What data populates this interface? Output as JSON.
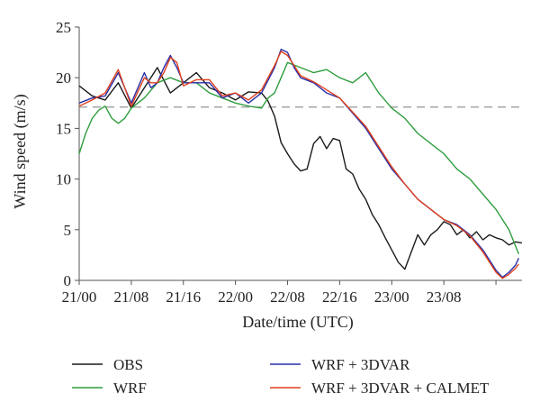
{
  "chart_data": {
    "type": "line",
    "xlabel": "Date/time (UTC)",
    "ylabel": "Wind speed (m/s)",
    "xunit": "hours from 21/00",
    "xlim": [
      0,
      68
    ],
    "ylim": [
      0,
      25
    ],
    "xticks": [
      0,
      8,
      16,
      24,
      32,
      40,
      48,
      56,
      64
    ],
    "xtick_labels": [
      "21/00",
      "21/08",
      "21/16",
      "22/00",
      "22/08",
      "22/16",
      "23/00",
      "23/08",
      ""
    ],
    "yticks": [
      0,
      5,
      10,
      15,
      20,
      25
    ],
    "ytick_labels": [
      "0",
      "5",
      "10",
      "15",
      "20",
      "25"
    ],
    "reference_line": {
      "y": 17.1,
      "style": "dashed"
    },
    "legend_placement": "bottom",
    "series": [
      {
        "name": "OBS",
        "color": "#1a1a1a",
        "x": [
          0,
          2,
          4,
          6,
          8,
          10,
          12,
          14,
          16,
          18,
          20,
          22,
          24,
          26,
          28,
          29,
          30,
          31,
          32,
          33,
          34,
          35,
          36,
          37,
          38,
          39,
          40,
          41,
          42,
          43,
          44,
          45,
          46,
          47,
          48,
          49,
          50,
          51,
          52,
          53,
          54,
          55,
          56,
          57,
          58,
          59,
          60,
          61,
          62,
          63,
          64,
          65,
          66,
          67,
          68
        ],
        "y": [
          19.2,
          18.2,
          17.8,
          19.5,
          17.0,
          19.0,
          21.0,
          18.5,
          19.5,
          20.5,
          19.0,
          18.5,
          17.8,
          18.6,
          18.5,
          17.7,
          16.2,
          13.6,
          12.5,
          11.5,
          10.8,
          11.0,
          13.5,
          14.2,
          13.0,
          14.0,
          13.8,
          11.0,
          10.5,
          9.0,
          8.0,
          6.5,
          5.5,
          4.2,
          3.0,
          1.8,
          1.1,
          2.8,
          4.5,
          3.5,
          4.5,
          5.0,
          5.8,
          5.5,
          4.5,
          5.0,
          4.2,
          4.8,
          4.0,
          4.5,
          4.2,
          4.0,
          3.5,
          3.8,
          3.7
        ]
      },
      {
        "name": "WRF",
        "color": "#2e9e3e",
        "x": [
          0,
          1,
          2,
          3,
          4,
          5,
          6,
          7,
          8,
          10,
          12,
          14,
          16,
          18,
          20,
          22,
          24,
          26,
          28,
          29,
          30,
          31,
          32,
          34,
          36,
          38,
          40,
          42,
          44,
          46,
          48,
          50,
          52,
          54,
          56,
          58,
          60,
          62,
          64,
          66,
          67.5
        ],
        "y": [
          12.5,
          14.5,
          16.0,
          16.8,
          17.2,
          16.0,
          15.5,
          16.0,
          17.0,
          18.0,
          19.5,
          20.0,
          19.5,
          19.5,
          18.5,
          18.0,
          17.5,
          17.2,
          17.0,
          18.0,
          18.5,
          20.0,
          21.5,
          21.0,
          20.5,
          20.8,
          20.0,
          19.5,
          20.5,
          18.5,
          17.0,
          16.0,
          14.5,
          13.5,
          12.5,
          11.0,
          10.0,
          8.5,
          7.0,
          5.0,
          2.6
        ]
      },
      {
        "name": "WRF + 3DVAR",
        "color": "#2a2fa8",
        "x": [
          0,
          2,
          4,
          6,
          8,
          10,
          11,
          12,
          13,
          14,
          15,
          16,
          18,
          20,
          22,
          24,
          26,
          28,
          30,
          31,
          32,
          33,
          34,
          36,
          38,
          40,
          42,
          44,
          46,
          48,
          50,
          52,
          54,
          56,
          58,
          60,
          62,
          64,
          65,
          66,
          67,
          67.5
        ],
        "y": [
          17.5,
          18.0,
          18.2,
          20.5,
          17.5,
          20.5,
          19.0,
          19.5,
          21.0,
          22.2,
          21.0,
          19.5,
          19.5,
          19.5,
          18.0,
          18.5,
          17.5,
          18.5,
          21.0,
          22.8,
          22.5,
          21.0,
          20.0,
          19.5,
          18.5,
          18.0,
          16.5,
          15.0,
          13.0,
          11.0,
          9.5,
          8.0,
          7.0,
          6.0,
          5.5,
          4.5,
          3.0,
          1.0,
          0.3,
          0.8,
          1.5,
          2.2
        ]
      },
      {
        "name": "WRF + 3DVAR + CALMET",
        "color": "#e0401e",
        "x": [
          0,
          2,
          4,
          6,
          8,
          10,
          11,
          12,
          13,
          14,
          15,
          16,
          18,
          20,
          22,
          24,
          26,
          28,
          30,
          31,
          32,
          33,
          34,
          36,
          38,
          40,
          42,
          44,
          46,
          48,
          50,
          52,
          54,
          56,
          58,
          60,
          62,
          64,
          65,
          66,
          67,
          67.5
        ],
        "y": [
          17.2,
          17.8,
          18.5,
          20.8,
          17.2,
          20.0,
          19.5,
          19.5,
          20.5,
          22.0,
          21.5,
          19.2,
          19.8,
          19.8,
          18.2,
          18.5,
          17.8,
          18.8,
          21.2,
          22.6,
          22.2,
          21.2,
          20.2,
          19.6,
          18.8,
          18.0,
          16.6,
          15.2,
          13.2,
          11.2,
          9.5,
          8.0,
          7.0,
          6.0,
          5.4,
          4.4,
          2.8,
          0.8,
          0.2,
          0.6,
          1.2,
          1.6
        ]
      }
    ]
  }
}
